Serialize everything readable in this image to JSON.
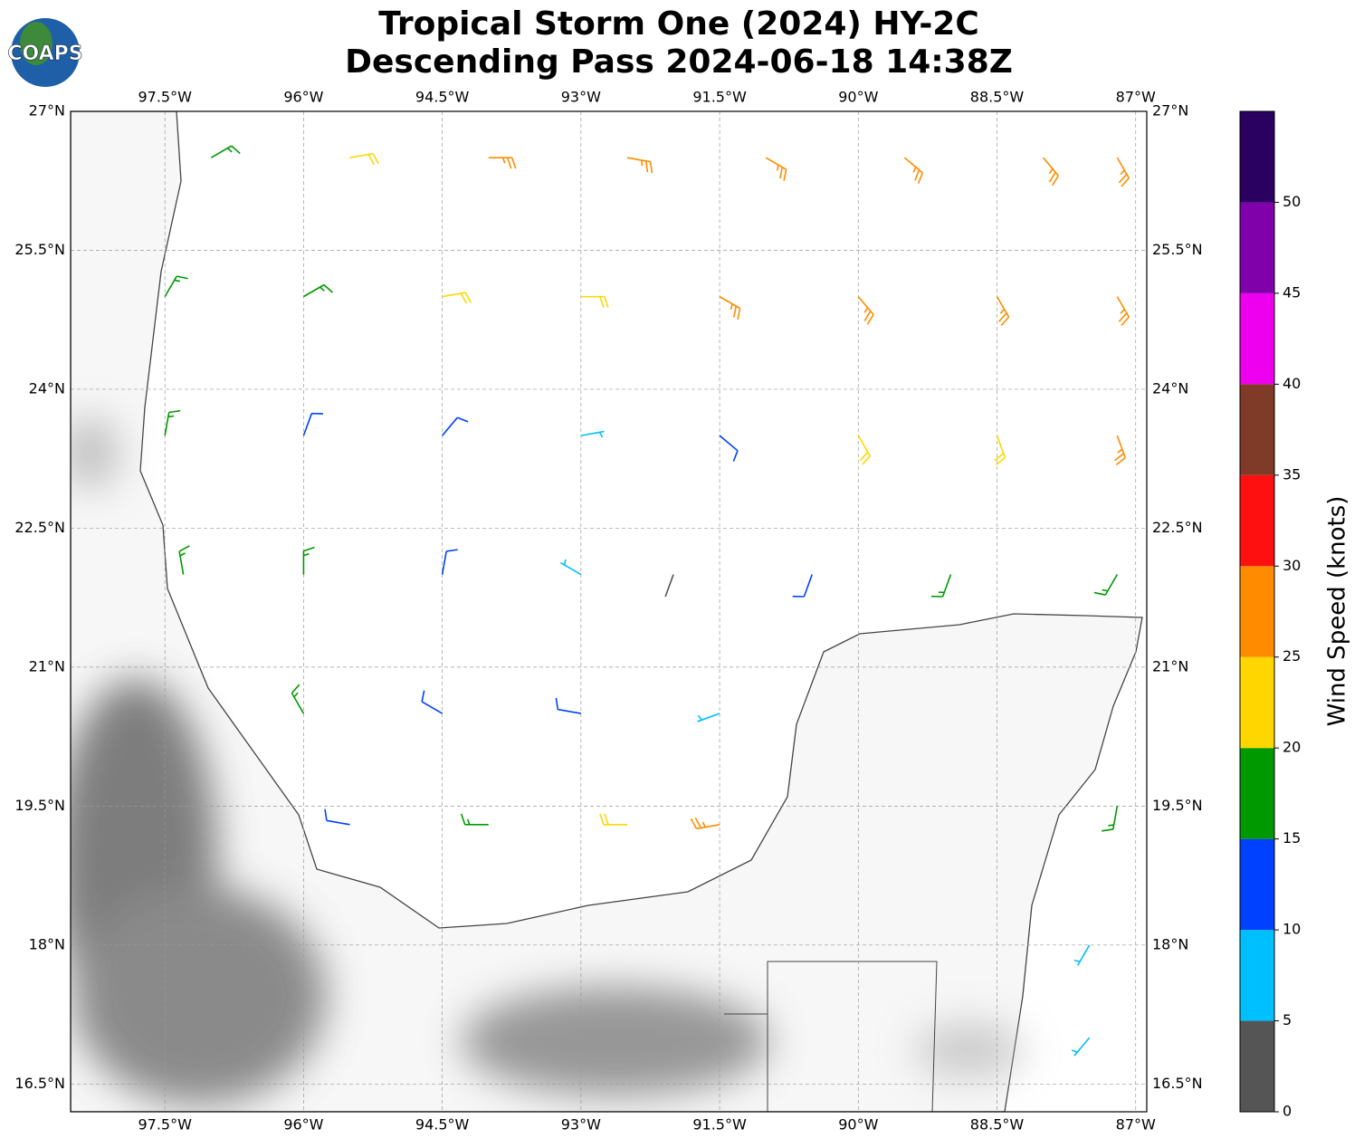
{
  "header": {
    "logo": "COAPS",
    "title_lines": [
      "Tropical Storm One (2024) HY-2C",
      "Descending Pass 2024-06-18 14:38Z"
    ]
  },
  "map": {
    "xlim": [
      -98.52,
      -86.88
    ],
    "ylim": [
      16.2,
      27
    ],
    "xticks": [
      {
        "value": -97.5,
        "label": "97.5°W"
      },
      {
        "value": -96,
        "label": "96°W"
      },
      {
        "value": -94.5,
        "label": "94.5°W"
      },
      {
        "value": -93,
        "label": "93°W"
      },
      {
        "value": -91.5,
        "label": "91.5°W"
      },
      {
        "value": -90,
        "label": "90°W"
      },
      {
        "value": -88.5,
        "label": "88.5°W"
      },
      {
        "value": -87,
        "label": "87°W"
      }
    ],
    "yticks": [
      {
        "value": 27,
        "label": "27°N"
      },
      {
        "value": 25.5,
        "label": "25.5°N"
      },
      {
        "value": 24,
        "label": "24°N"
      },
      {
        "value": 22.5,
        "label": "22.5°N"
      },
      {
        "value": 21,
        "label": "21°N"
      },
      {
        "value": 19.5,
        "label": "19.5°N"
      },
      {
        "value": 18,
        "label": "18°N"
      },
      {
        "value": 16.5,
        "label": "16.5°N"
      }
    ],
    "grid": true,
    "barbs": {
      "lon": [
        -97,
        -95.5,
        -94,
        -92.5,
        -91,
        -89.5,
        -88,
        -87.2,
        -97.5,
        -96,
        -94.5,
        -93,
        -91.5,
        -90,
        -88.5,
        -87.2,
        -97.5,
        -96,
        -94.5,
        -93,
        -91.5,
        -90,
        -88.5,
        -87.2,
        -97.3,
        -96,
        -94.5,
        -93,
        -92,
        -90.5,
        -89,
        -87.2,
        -96,
        -94.5,
        -93,
        -91.5,
        -95.5,
        -94,
        -92.5,
        -91.5,
        -87.5,
        -87.2,
        -87.5
      ],
      "lat": [
        26.5,
        26.5,
        26.5,
        26.5,
        26.5,
        26.5,
        26.5,
        26.5,
        25,
        25,
        25,
        25,
        25,
        25,
        25,
        25,
        23.5,
        23.5,
        23.5,
        23.5,
        23.5,
        23.5,
        23.5,
        23.5,
        22,
        22,
        22,
        22,
        22,
        22,
        22,
        22,
        20.5,
        20.5,
        20.5,
        20.5,
        19.3,
        19.3,
        19.3,
        19.3,
        18,
        19.5,
        17
      ],
      "speed": [
        17,
        22,
        27,
        28,
        27,
        26,
        27,
        28,
        16,
        17,
        21,
        23,
        26,
        27,
        26,
        27,
        16,
        13,
        12,
        8,
        14,
        22,
        23,
        26,
        18,
        16,
        13,
        7,
        3,
        13,
        17,
        16,
        16,
        12,
        11,
        9,
        14,
        17,
        21,
        26,
        8,
        16,
        9
      ],
      "direction": [
        60,
        80,
        90,
        100,
        120,
        130,
        140,
        150,
        30,
        60,
        80,
        90,
        120,
        140,
        150,
        150,
        10,
        20,
        40,
        80,
        130,
        150,
        160,
        160,
        350,
        0,
        10,
        300,
        200,
        200,
        200,
        210,
        330,
        300,
        280,
        250,
        280,
        270,
        270,
        260,
        210,
        190,
        220
      ]
    }
  },
  "colorbar": {
    "label": "Wind Speed (knots)",
    "bounds": [
      0,
      5,
      10,
      15,
      20,
      25,
      30,
      35,
      40,
      45,
      50,
      55
    ],
    "colors": [
      "#555555",
      "#00bfff",
      "#0040ff",
      "#009900",
      "#ffd700",
      "#ff8c00",
      "#ff1010",
      "#803a28",
      "#ee00ee",
      "#8000aa",
      "#2a0060"
    ],
    "ticks": [
      0,
      5,
      10,
      15,
      20,
      25,
      30,
      35,
      40,
      45,
      50
    ]
  }
}
